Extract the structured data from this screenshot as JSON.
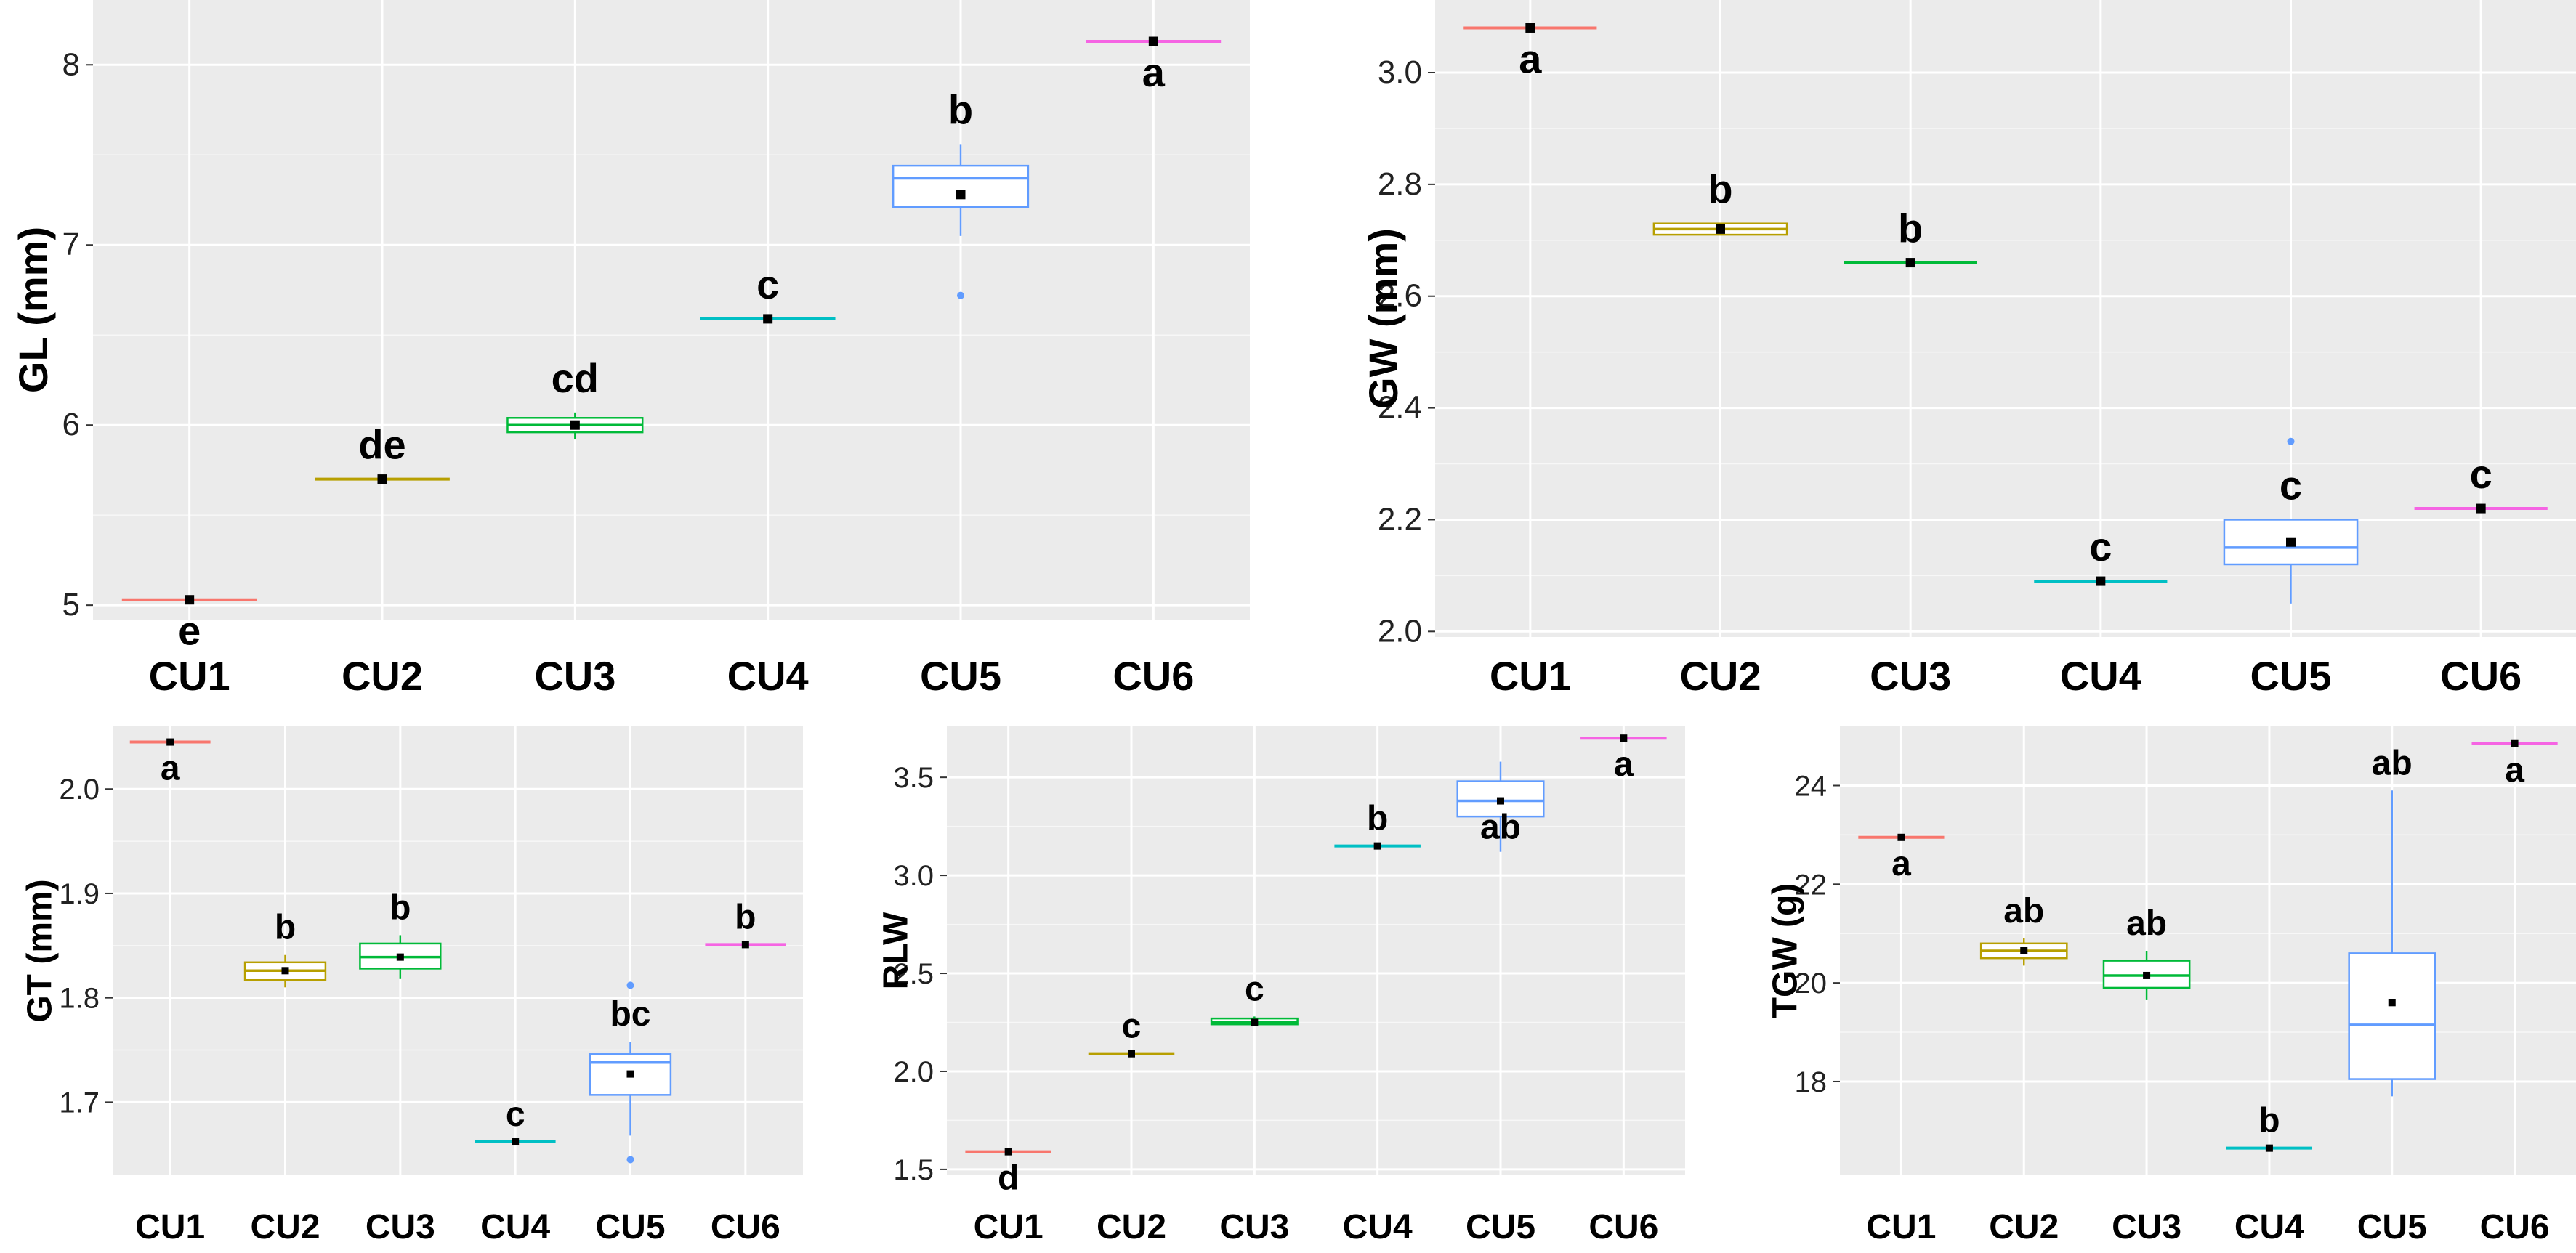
{
  "chart_data": [
    {
      "type": "box",
      "ylabel": "GL (mm)",
      "categories": [
        "CU1",
        "CU2",
        "CU3",
        "CU4",
        "CU5",
        "CU6"
      ],
      "ylim": [
        4.92,
        8.36
      ],
      "yticks": [
        5,
        6,
        7,
        8
      ],
      "ytick_labels": [
        "5",
        "6",
        "7",
        "8"
      ],
      "boxes": [
        {
          "q1": 5.03,
          "median": 5.03,
          "q3": 5.03,
          "wlow": 5.03,
          "whigh": 5.03,
          "mean": 5.03,
          "outliers": [],
          "letter": "e"
        },
        {
          "q1": 5.7,
          "median": 5.7,
          "q3": 5.7,
          "wlow": 5.7,
          "whigh": 5.7,
          "mean": 5.7,
          "outliers": [],
          "letter": "de"
        },
        {
          "q1": 5.96,
          "median": 6.0,
          "q3": 6.04,
          "wlow": 5.92,
          "whigh": 6.07,
          "mean": 6.0,
          "outliers": [],
          "letter": "cd"
        },
        {
          "q1": 6.59,
          "median": 6.59,
          "q3": 6.59,
          "wlow": 6.59,
          "whigh": 6.59,
          "mean": 6.59,
          "outliers": [],
          "letter": "c"
        },
        {
          "q1": 7.21,
          "median": 7.37,
          "q3": 7.44,
          "wlow": 7.05,
          "whigh": 7.56,
          "mean": 7.28,
          "outliers": [
            6.72
          ],
          "letter": "b"
        },
        {
          "q1": 8.13,
          "median": 8.13,
          "q3": 8.13,
          "wlow": 8.13,
          "whigh": 8.13,
          "mean": 8.13,
          "outliers": [],
          "letter": "a"
        }
      ]
    },
    {
      "type": "box",
      "ylabel": "GW (mm)",
      "categories": [
        "CU1",
        "CU2",
        "CU3",
        "CU4",
        "CU5",
        "CU6"
      ],
      "ylim": [
        1.99,
        3.13
      ],
      "yticks": [
        2.0,
        2.2,
        2.4,
        2.6,
        2.8,
        3.0
      ],
      "ytick_labels": [
        "2.0",
        "2.2",
        "2.4",
        "2.6",
        "2.8",
        "3.0"
      ],
      "boxes": [
        {
          "q1": 3.08,
          "median": 3.08,
          "q3": 3.08,
          "wlow": 3.08,
          "whigh": 3.08,
          "mean": 3.08,
          "outliers": [],
          "letter": "a"
        },
        {
          "q1": 2.71,
          "median": 2.72,
          "q3": 2.73,
          "wlow": 2.71,
          "whigh": 2.73,
          "mean": 2.72,
          "outliers": [],
          "letter": "b"
        },
        {
          "q1": 2.66,
          "median": 2.66,
          "q3": 2.66,
          "wlow": 2.66,
          "whigh": 2.66,
          "mean": 2.66,
          "outliers": [],
          "letter": "b"
        },
        {
          "q1": 2.09,
          "median": 2.09,
          "q3": 2.09,
          "wlow": 2.09,
          "whigh": 2.09,
          "mean": 2.09,
          "outliers": [],
          "letter": "c"
        },
        {
          "q1": 2.12,
          "median": 2.15,
          "q3": 2.2,
          "wlow": 2.05,
          "whigh": 2.2,
          "mean": 2.16,
          "outliers": [
            2.34
          ],
          "letter": "c"
        },
        {
          "q1": 2.22,
          "median": 2.22,
          "q3": 2.22,
          "wlow": 2.22,
          "whigh": 2.22,
          "mean": 2.22,
          "outliers": [],
          "letter": "c"
        }
      ]
    },
    {
      "type": "box",
      "ylabel": "GT (mm)",
      "categories": [
        "CU1",
        "CU2",
        "CU3",
        "CU4",
        "CU5",
        "CU6"
      ],
      "ylim": [
        1.63,
        2.06
      ],
      "yticks": [
        1.7,
        1.8,
        1.9,
        2.0
      ],
      "ytick_labels": [
        "1.7",
        "1.8",
        "1.9",
        "2.0"
      ],
      "boxes": [
        {
          "q1": 2.045,
          "median": 2.045,
          "q3": 2.045,
          "wlow": 2.045,
          "whigh": 2.045,
          "mean": 2.045,
          "outliers": [],
          "letter": "a"
        },
        {
          "q1": 1.817,
          "median": 1.826,
          "q3": 1.834,
          "wlow": 1.81,
          "whigh": 1.841,
          "mean": 1.826,
          "outliers": [],
          "letter": "b"
        },
        {
          "q1": 1.828,
          "median": 1.839,
          "q3": 1.852,
          "wlow": 1.818,
          "whigh": 1.86,
          "mean": 1.839,
          "outliers": [],
          "letter": "b"
        },
        {
          "q1": 1.662,
          "median": 1.662,
          "q3": 1.662,
          "wlow": 1.662,
          "whigh": 1.662,
          "mean": 1.662,
          "outliers": [],
          "letter": "c"
        },
        {
          "q1": 1.707,
          "median": 1.738,
          "q3": 1.746,
          "wlow": 1.668,
          "whigh": 1.758,
          "mean": 1.727,
          "outliers": [
            1.812,
            1.645
          ],
          "letter": "bc"
        },
        {
          "q1": 1.851,
          "median": 1.851,
          "q3": 1.851,
          "wlow": 1.851,
          "whigh": 1.851,
          "mean": 1.851,
          "outliers": [],
          "letter": "b"
        }
      ]
    },
    {
      "type": "box",
      "ylabel": "RLW",
      "categories": [
        "CU1",
        "CU2",
        "CU3",
        "CU4",
        "CU5",
        "CU6"
      ],
      "ylim": [
        1.47,
        3.76
      ],
      "yticks": [
        1.5,
        2.0,
        2.5,
        3.0,
        3.5
      ],
      "ytick_labels": [
        "1.5",
        "2.0",
        "2.5",
        "3.0",
        "3.5"
      ],
      "boxes": [
        {
          "q1": 1.59,
          "median": 1.59,
          "q3": 1.59,
          "wlow": 1.59,
          "whigh": 1.59,
          "mean": 1.59,
          "outliers": [],
          "letter": "d"
        },
        {
          "q1": 2.09,
          "median": 2.09,
          "q3": 2.09,
          "wlow": 2.09,
          "whigh": 2.09,
          "mean": 2.09,
          "outliers": [],
          "letter": "c"
        },
        {
          "q1": 2.24,
          "median": 2.25,
          "q3": 2.27,
          "wlow": 2.23,
          "whigh": 2.28,
          "mean": 2.25,
          "outliers": [],
          "letter": "c"
        },
        {
          "q1": 3.15,
          "median": 3.15,
          "q3": 3.15,
          "wlow": 3.15,
          "whigh": 3.15,
          "mean": 3.15,
          "outliers": [],
          "letter": "b"
        },
        {
          "q1": 3.3,
          "median": 3.38,
          "q3": 3.48,
          "wlow": 3.12,
          "whigh": 3.58,
          "mean": 3.38,
          "outliers": [],
          "letter": "ab"
        },
        {
          "q1": 3.7,
          "median": 3.7,
          "q3": 3.7,
          "wlow": 3.7,
          "whigh": 3.7,
          "mean": 3.7,
          "outliers": [],
          "letter": "a"
        }
      ]
    },
    {
      "type": "box",
      "ylabel": "TGW (g)",
      "categories": [
        "CU1",
        "CU2",
        "CU3",
        "CU4",
        "CU5",
        "CU6"
      ],
      "ylim": [
        16.1,
        25.2
      ],
      "yticks": [
        18,
        20,
        22,
        24
      ],
      "ytick_labels": [
        "18",
        "20",
        "22",
        "24"
      ],
      "boxes": [
        {
          "q1": 22.95,
          "median": 22.95,
          "q3": 22.95,
          "wlow": 22.95,
          "whigh": 22.95,
          "mean": 22.95,
          "outliers": [],
          "letter": "a"
        },
        {
          "q1": 20.5,
          "median": 20.65,
          "q3": 20.8,
          "wlow": 20.35,
          "whigh": 20.9,
          "mean": 20.65,
          "outliers": [],
          "letter": "ab"
        },
        {
          "q1": 19.9,
          "median": 20.15,
          "q3": 20.45,
          "wlow": 19.65,
          "whigh": 20.65,
          "mean": 20.15,
          "outliers": [],
          "letter": "ab"
        },
        {
          "q1": 16.65,
          "median": 16.65,
          "q3": 16.65,
          "wlow": 16.65,
          "whigh": 16.65,
          "mean": 16.65,
          "outliers": [],
          "letter": "b"
        },
        {
          "q1": 18.05,
          "median": 19.15,
          "q3": 20.6,
          "wlow": 17.7,
          "whigh": 23.9,
          "mean": 19.6,
          "outliers": [],
          "letter": "ab"
        },
        {
          "q1": 24.85,
          "median": 24.85,
          "q3": 24.85,
          "wlow": 24.85,
          "whigh": 24.85,
          "mean": 24.85,
          "outliers": [],
          "letter": "a"
        }
      ]
    }
  ],
  "palette": [
    "#f8766d",
    "#b79f00",
    "#00ba38",
    "#00bfc4",
    "#619cff",
    "#f564e3"
  ],
  "panel_background": "#ebebeb",
  "gridline_color": "#ffffff"
}
